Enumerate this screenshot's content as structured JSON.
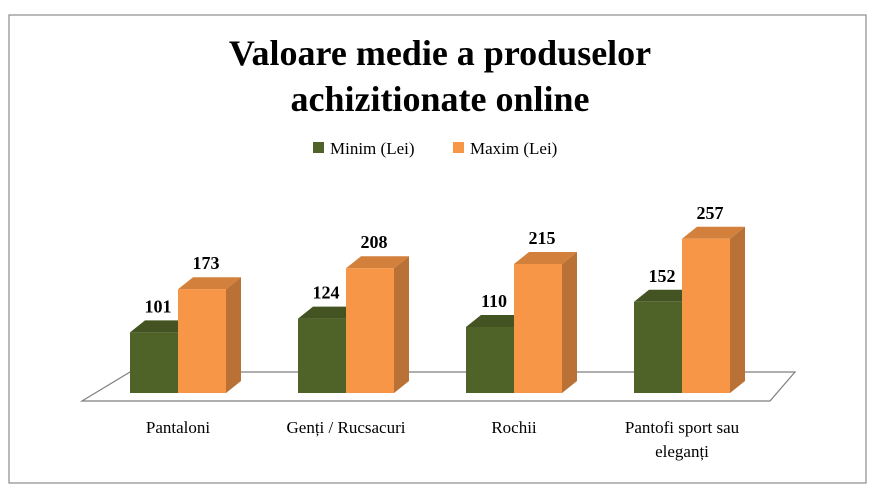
{
  "chart_data": {
    "type": "bar3d",
    "title": "Valoare medie a produselor achizitionate online",
    "categories": [
      "Pantaloni",
      "Genți / Rucsacuri",
      "Rochii",
      "Pantofi sport sau eleganți"
    ],
    "series": [
      {
        "name": "Minim (Lei)",
        "color": "#4f6228",
        "values": [
          101,
          124,
          110,
          152
        ]
      },
      {
        "name": "Maxim (Lei)",
        "color": "#f79646",
        "values": [
          173,
          208,
          215,
          257
        ]
      }
    ]
  }
}
